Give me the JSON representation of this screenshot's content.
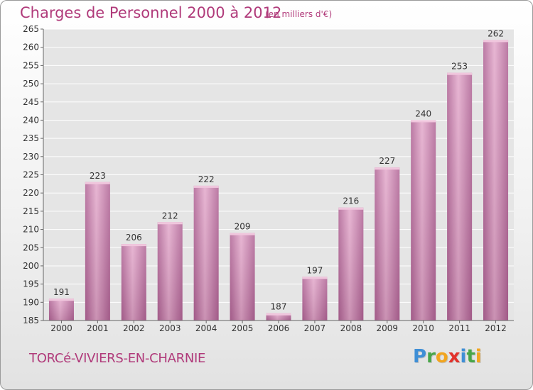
{
  "header": {
    "title": "Charges de Personnel 2000 à 2012",
    "subtitle": "(en milliers d'€)"
  },
  "footer": {
    "commune": "TORCé-VIVIERS-EN-CHARNIE",
    "logo_letters": [
      {
        "ch": "P",
        "color": "#3f8fd6"
      },
      {
        "ch": "r",
        "color": "#48a648"
      },
      {
        "ch": "o",
        "color": "#f2a51f"
      },
      {
        "ch": "x",
        "color": "#e2322b"
      },
      {
        "ch": "i",
        "color": "#3f8fd6"
      },
      {
        "ch": "t",
        "color": "#48a648"
      },
      {
        "ch": "i",
        "color": "#f2a51f"
      }
    ]
  },
  "colors": {
    "bar": "#cc86b0",
    "bar_light": "#e3a9cb",
    "bar_dark": "#b06495",
    "bar_top": "#f0c6dd",
    "plot_bg": "#e5e5e5",
    "grid": "#ffffff",
    "text": "#333333"
  },
  "chart_data": {
    "type": "bar",
    "title": "Charges de Personnel 2000 à 2012",
    "subtitle": "(en milliers d'€)",
    "categories": [
      "2000",
      "2001",
      "2002",
      "2003",
      "2004",
      "2005",
      "2006",
      "2007",
      "2008",
      "2009",
      "2010",
      "2011",
      "2012"
    ],
    "values": [
      191,
      223,
      206,
      212,
      222,
      209,
      187,
      197,
      216,
      227,
      240,
      253,
      262
    ],
    "data_labels": [
      "191",
      "223",
      "206",
      "212",
      "222",
      "209",
      "187",
      "197",
      "216",
      "227",
      "240",
      "253",
      "262"
    ],
    "ylim": [
      185,
      265
    ],
    "yticks": [
      185,
      190,
      195,
      200,
      205,
      210,
      215,
      220,
      225,
      230,
      235,
      240,
      245,
      250,
      255,
      260,
      265
    ],
    "ytick_labels": [
      "185",
      "190",
      "195",
      "200",
      "205",
      "210",
      "215",
      "220",
      "225",
      "230",
      "235",
      "240",
      "245",
      "250",
      "255",
      "260",
      "265"
    ],
    "grid": true,
    "legend": "none",
    "xlabel": "",
    "ylabel": ""
  }
}
